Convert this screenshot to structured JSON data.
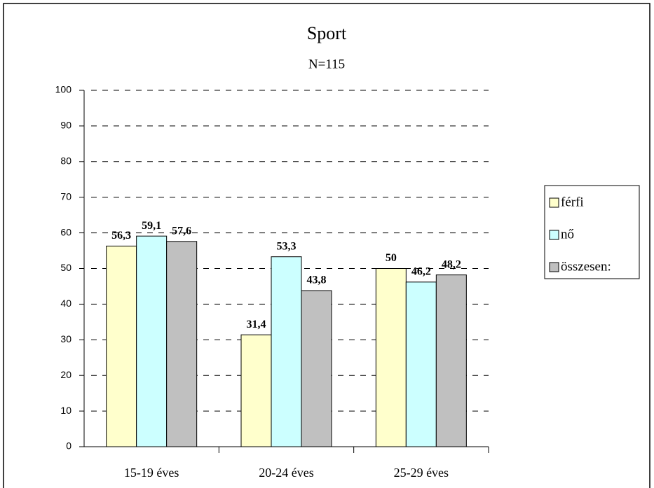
{
  "chart_data": {
    "type": "bar",
    "title": "Sport",
    "subtitle": "N=115",
    "categories": [
      "15-19 éves",
      "20-24 éves",
      "25-29 éves"
    ],
    "series": [
      {
        "name": "férfi",
        "color": "#ffffcc",
        "values": [
          56.3,
          31.4,
          50
        ],
        "value_labels": [
          "56,3",
          "31,4",
          "50"
        ]
      },
      {
        "name": "nő",
        "color": "#ccffff",
        "values": [
          59.1,
          53.3,
          46.2
        ],
        "value_labels": [
          "59,1",
          "53,3",
          "46,2"
        ]
      },
      {
        "name": "összesen:",
        "color": "#c0c0c0",
        "values": [
          57.6,
          43.8,
          48.2
        ],
        "value_labels": [
          "57,6",
          "43,8",
          "48,2"
        ]
      }
    ],
    "ylim": [
      0,
      100
    ],
    "yticks": [
      0,
      10,
      20,
      30,
      40,
      50,
      60,
      70,
      80,
      90,
      100
    ],
    "grid": true,
    "legend": "right"
  }
}
